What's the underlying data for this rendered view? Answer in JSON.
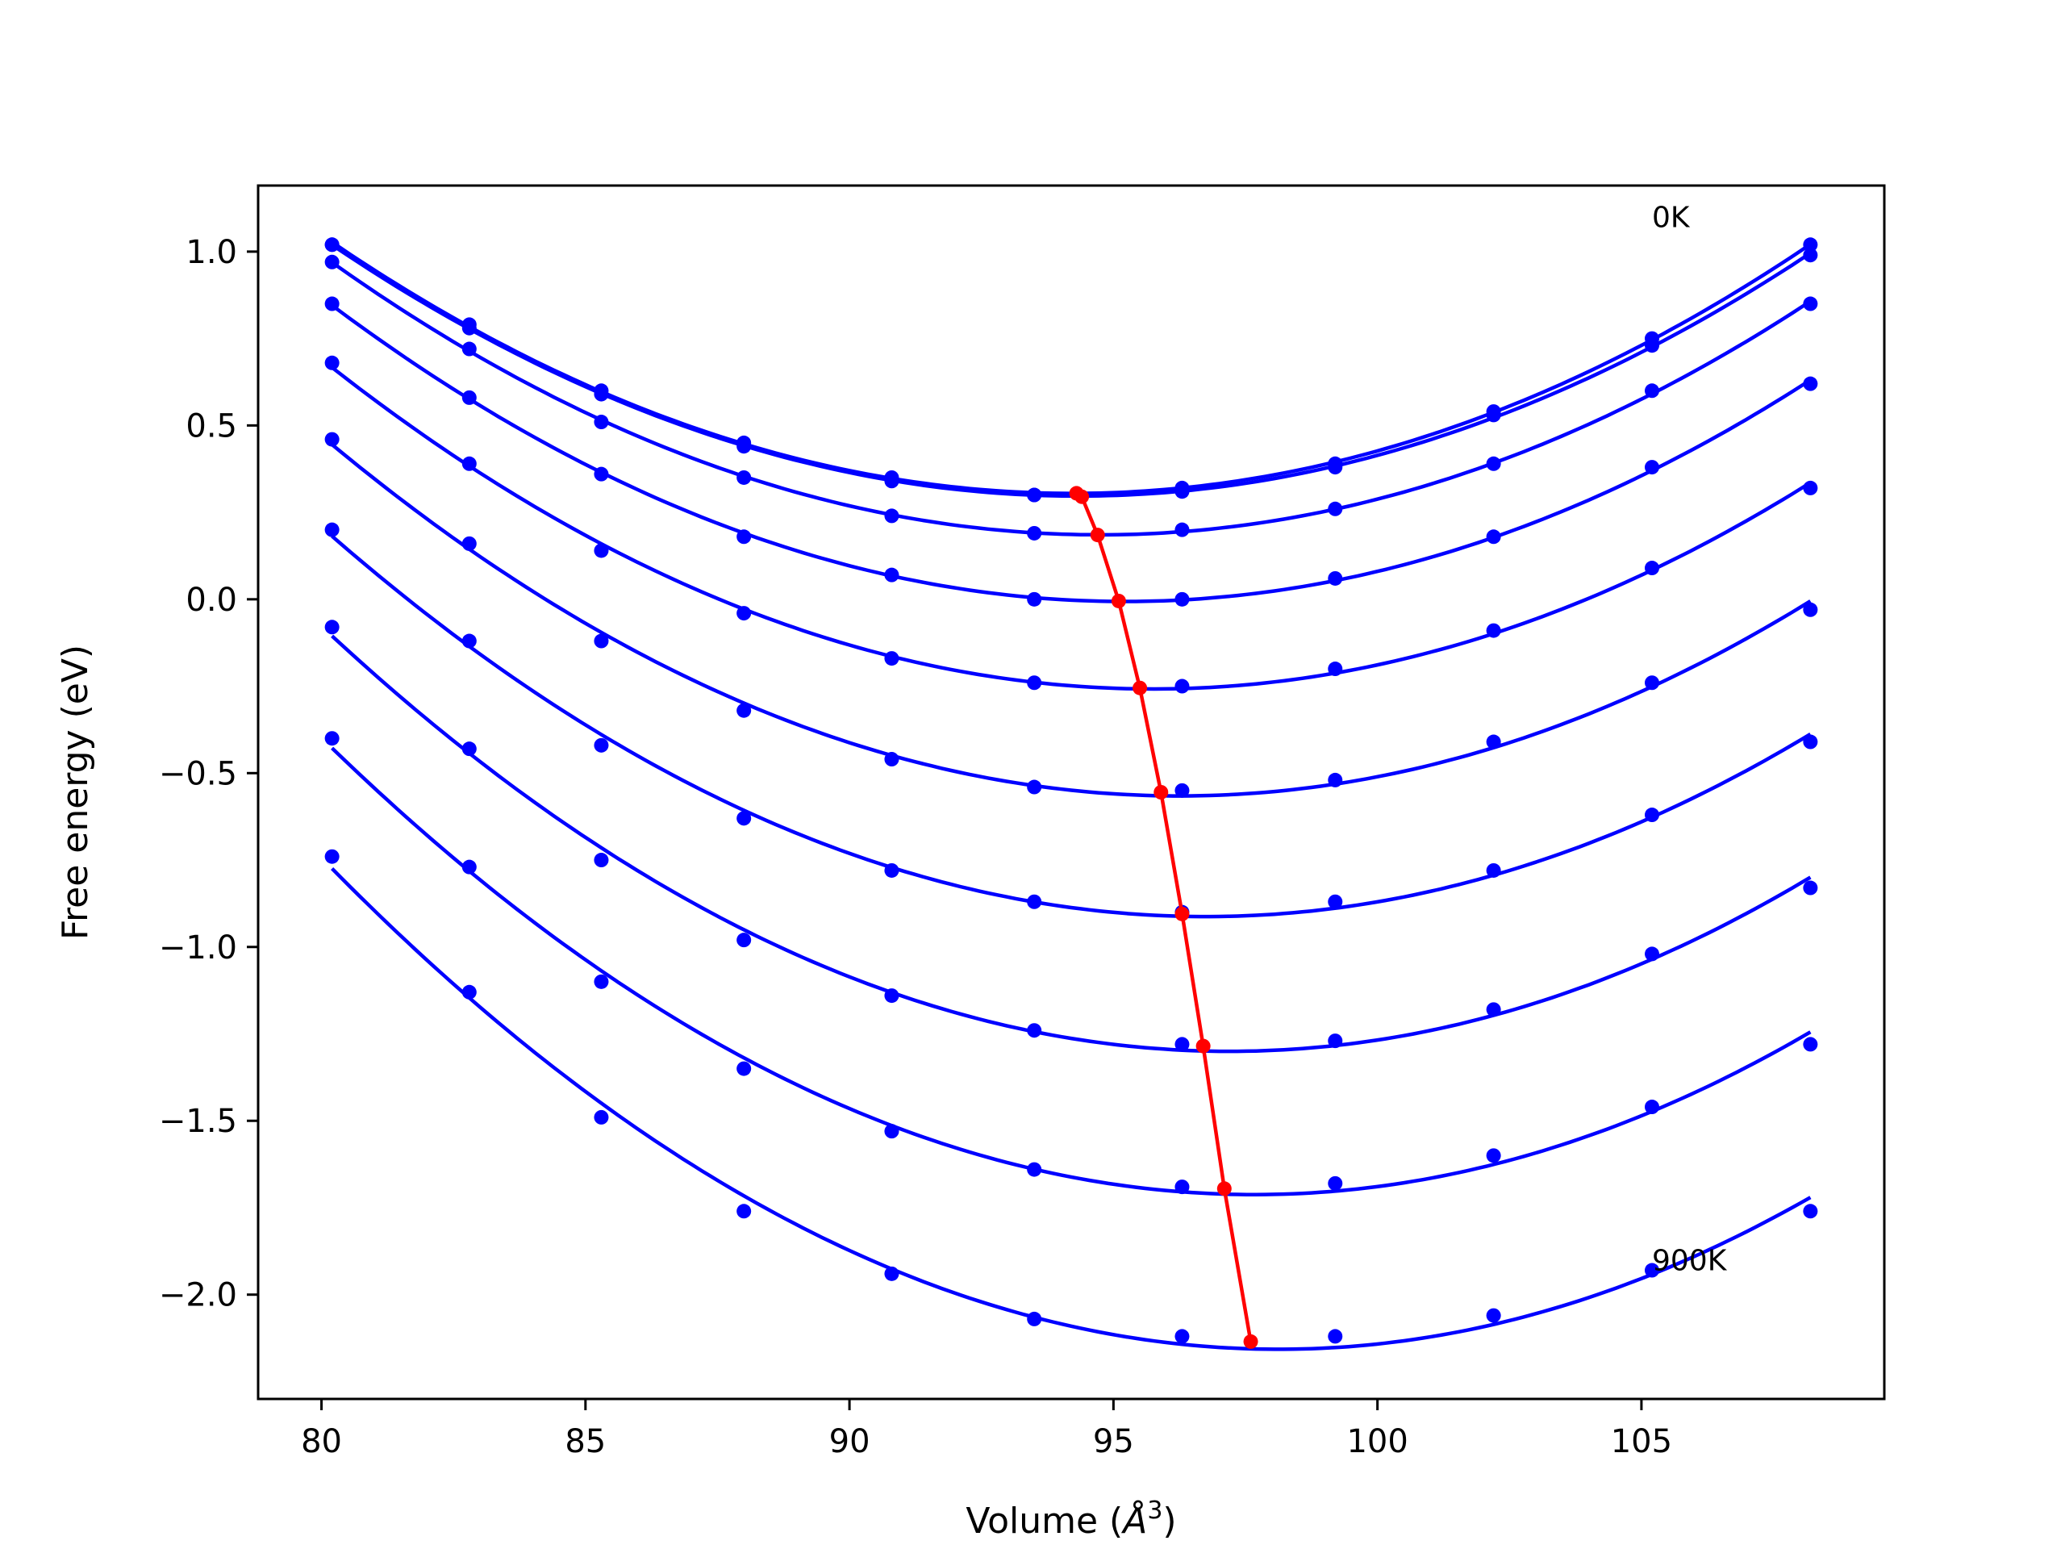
{
  "chart_data": {
    "type": "line",
    "title": "",
    "xlabel": "Volume ($\\AA^3$)",
    "xlabel_parts": [
      "Volume (",
      "Å",
      "3",
      ")"
    ],
    "ylabel": "Free energy (eV)",
    "xlim": [
      78.8,
      109.6
    ],
    "ylim": [
      -2.3,
      1.19
    ],
    "xticks": [
      80,
      85,
      90,
      95,
      100,
      105
    ],
    "yticks": [
      1.0,
      0.5,
      0.0,
      -0.5,
      -1.0,
      -1.5,
      -2.0
    ],
    "xtick_labels": [
      "80",
      "85",
      "90",
      "95",
      "100",
      "105"
    ],
    "ytick_labels": [
      "1.0",
      "0.5",
      "0.0",
      "−0.5",
      "−1.0",
      "−1.5",
      "−2.0"
    ],
    "grid": false,
    "annotations": [
      {
        "text": "0K",
        "x": 105.2,
        "y": 1.07
      },
      {
        "text": "900K",
        "x": 105.2,
        "y": -1.93
      }
    ],
    "colors": {
      "curves": "#0000ff",
      "minima": "#ff0000",
      "axes": "#000000"
    },
    "volumes": [
      80.2,
      82.8,
      85.3,
      88.0,
      90.8,
      93.5,
      96.3,
      99.2,
      102.2,
      105.2,
      108.2
    ],
    "series": [
      {
        "values": [
          1.02,
          0.79,
          0.6,
          0.45,
          0.35,
          0.3,
          0.32,
          0.39,
          0.54,
          0.75,
          1.02
        ],
        "min_x": 94.3,
        "min_y": 0.305
      },
      {
        "values": [
          1.02,
          0.78,
          0.59,
          0.44,
          0.34,
          0.3,
          0.31,
          0.38,
          0.53,
          0.73,
          0.99
        ],
        "min_x": 94.4,
        "min_y": 0.295
      },
      {
        "values": [
          0.97,
          0.72,
          0.51,
          0.35,
          0.24,
          0.19,
          0.2,
          0.26,
          0.39,
          0.6,
          0.85
        ],
        "min_x": 94.7,
        "min_y": 0.185
      },
      {
        "values": [
          0.85,
          0.58,
          0.36,
          0.18,
          0.07,
          0.0,
          0.0,
          0.06,
          0.18,
          0.38,
          0.62
        ],
        "min_x": 95.1,
        "min_y": -0.005
      },
      {
        "values": [
          0.68,
          0.39,
          0.14,
          -0.04,
          -0.17,
          -0.24,
          -0.25,
          -0.2,
          -0.09,
          0.09,
          0.32
        ],
        "min_x": 95.5,
        "min_y": -0.255
      },
      {
        "values": [
          0.46,
          0.16,
          -0.12,
          -0.32,
          -0.46,
          -0.54,
          -0.55,
          -0.52,
          -0.41,
          -0.24,
          -0.03
        ],
        "min_x": 95.9,
        "min_y": -0.555
      },
      {
        "values": [
          0.2,
          -0.12,
          -0.42,
          -0.63,
          -0.78,
          -0.87,
          -0.9,
          -0.87,
          -0.78,
          -0.62,
          -0.41
        ],
        "min_x": 96.3,
        "min_y": -0.905
      },
      {
        "values": [
          -0.08,
          -0.43,
          -0.75,
          -0.98,
          -1.14,
          -1.24,
          -1.28,
          -1.27,
          -1.18,
          -1.02,
          -0.83
        ],
        "min_x": 96.7,
        "min_y": -1.285
      },
      {
        "values": [
          -0.4,
          -0.77,
          -1.1,
          -1.35,
          -1.53,
          -1.64,
          -1.69,
          -1.68,
          -1.6,
          -1.46,
          -1.28
        ],
        "min_x": 97.1,
        "min_y": -1.695
      },
      {
        "values": [
          -0.74,
          -1.13,
          -1.49,
          -1.76,
          -1.94,
          -2.07,
          -2.12,
          -2.12,
          -2.06,
          -1.93,
          -1.76
        ],
        "min_x": 97.6,
        "min_y": -2.135
      }
    ]
  }
}
